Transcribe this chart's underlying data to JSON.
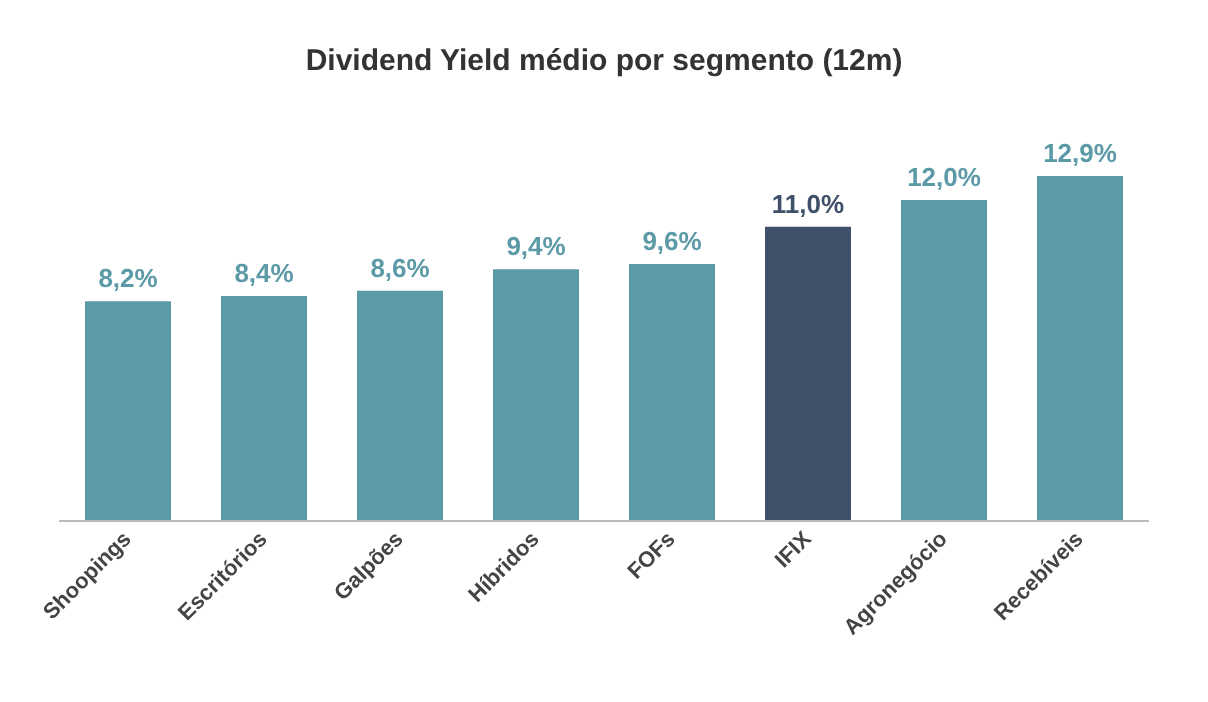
{
  "chart_data": {
    "type": "bar",
    "title": "Dividend Yield médio por segmento (12m)",
    "categories": [
      "Shoopings",
      "Escritórios",
      "Galpões",
      "Híbridos",
      "FOFs",
      "IFIX",
      "Agronegócio",
      "Recebíveis"
    ],
    "values": [
      8.2,
      8.4,
      8.6,
      9.4,
      9.6,
      11.0,
      12.0,
      12.9
    ],
    "value_labels": [
      "8,2%",
      "8,4%",
      "8,6%",
      "9,4%",
      "9,6%",
      "11,0%",
      "12,0%",
      "12,9%"
    ],
    "colors": [
      "#5b9aa6",
      "#5b9aa6",
      "#5b9aa6",
      "#5b9aa6",
      "#5b9aa6",
      "#3f5068",
      "#5b9aa6",
      "#5b9aa6"
    ]
  }
}
